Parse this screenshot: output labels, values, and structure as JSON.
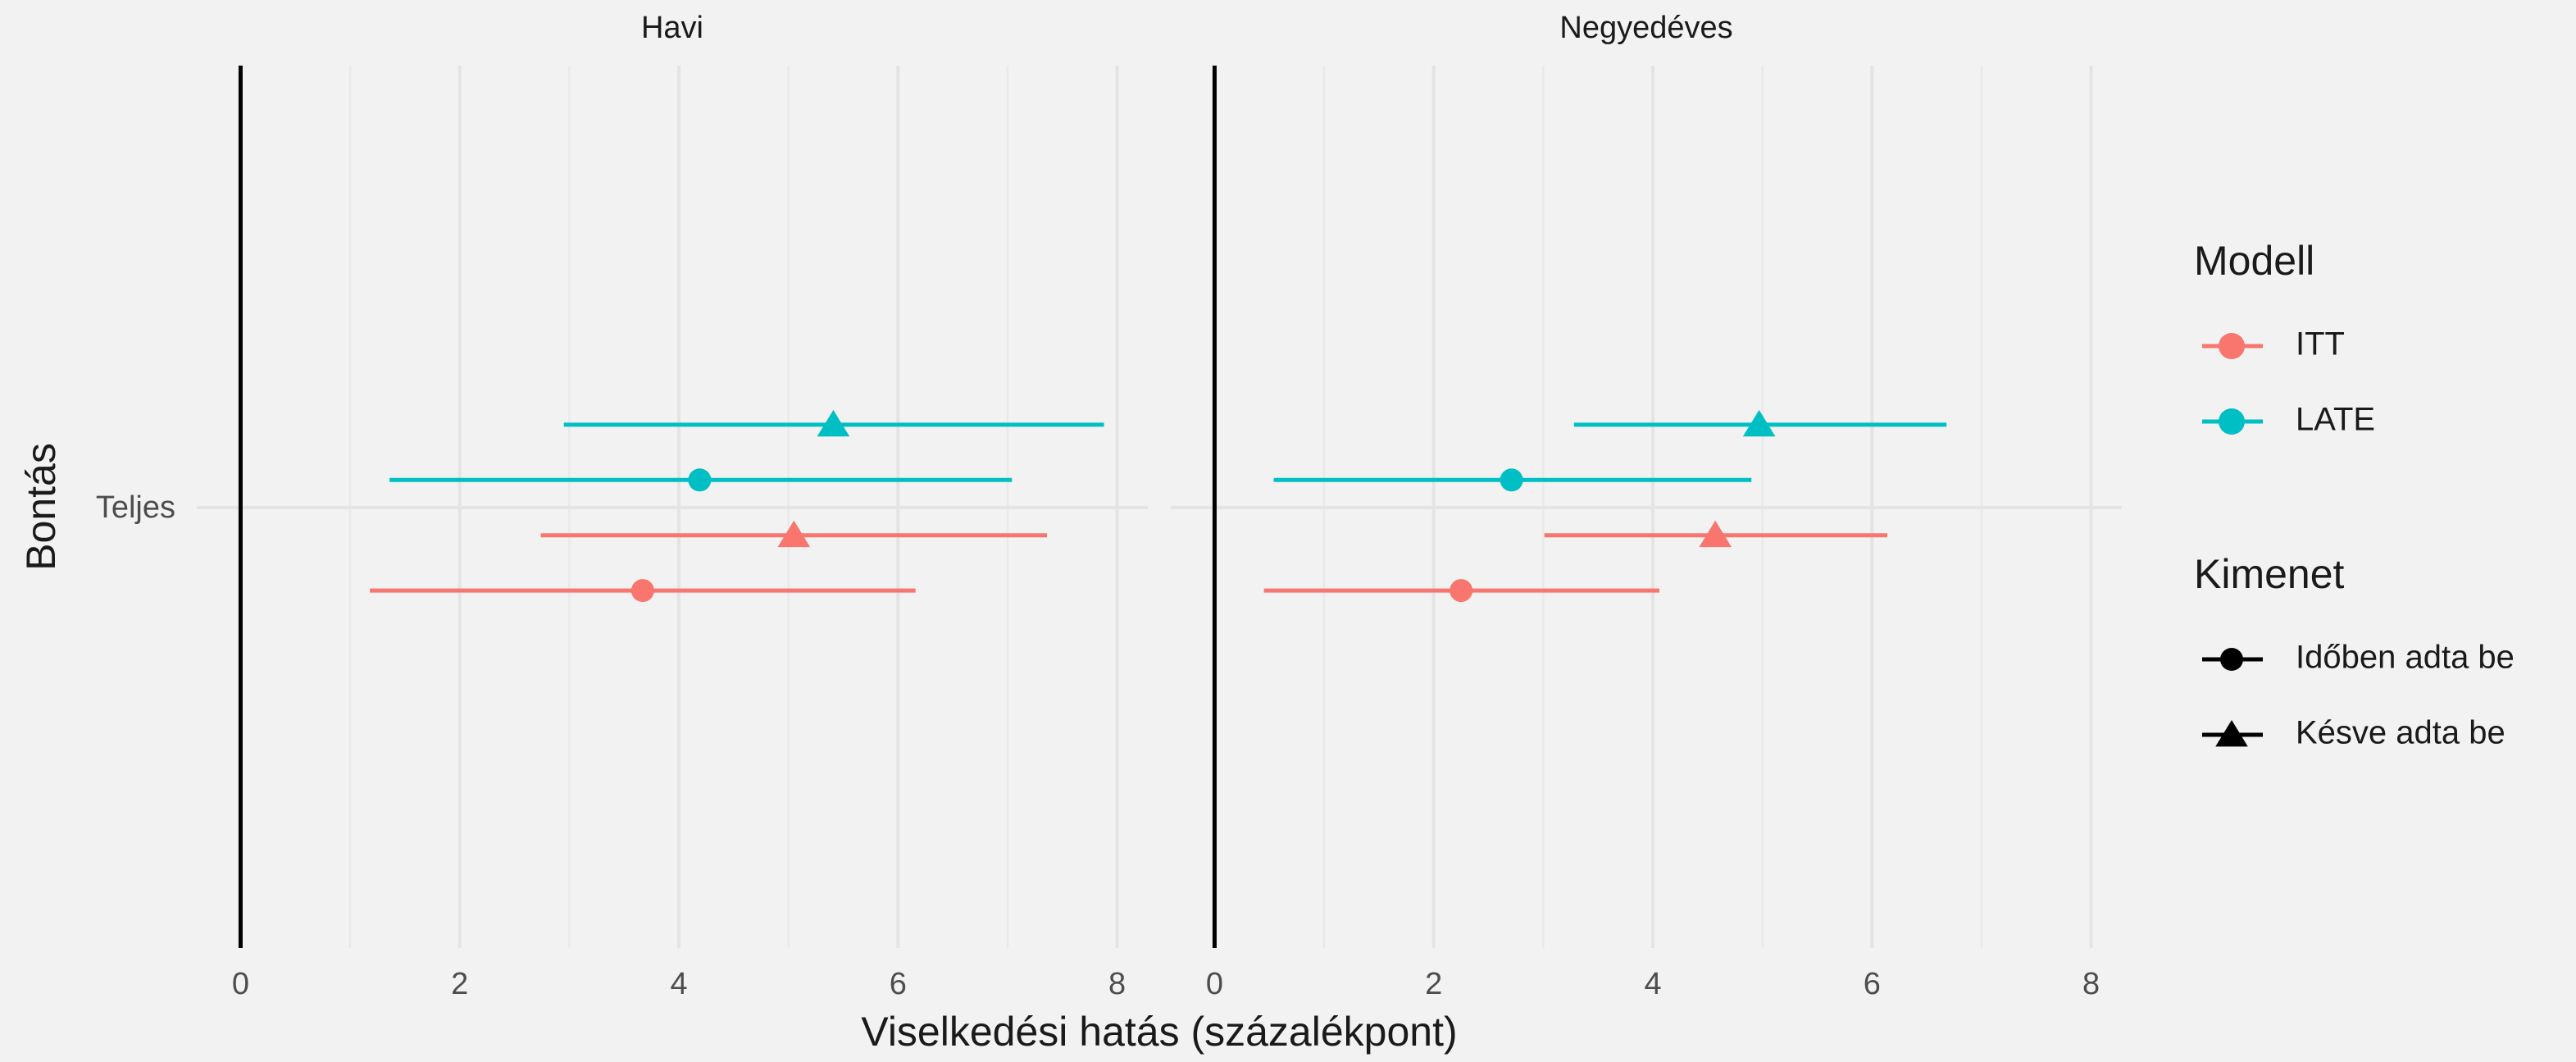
{
  "chart_data": {
    "type": "errorbar",
    "x_label": "Viselkedési hatás (százalékpont)",
    "y_label": "Bontás",
    "categories": [
      "Teljes"
    ],
    "xlim": [
      -0.4,
      8.28
    ],
    "xticks": [
      0,
      2,
      4,
      6,
      8
    ],
    "xticks_minor": [
      1,
      3,
      5,
      7
    ],
    "xintercept": 0,
    "grid": true,
    "legend_position": "right",
    "legend": {
      "color": {
        "title": "Modell",
        "entries": [
          {
            "name": "ITT",
            "color": "#f8766d"
          },
          {
            "name": "LATE",
            "color": "#00bfc4"
          }
        ]
      },
      "shape": {
        "title": "Kimenet",
        "entries": [
          {
            "name": "Időben adta be",
            "shape": "circle"
          },
          {
            "name": "Késve adta be",
            "shape": "triangle"
          }
        ]
      }
    },
    "facets": [
      {
        "title": "Havi",
        "series": [
          {
            "model": "ITT",
            "outcome": "Időben adta be",
            "color": "#f8766d",
            "shape": "circle",
            "values": [
              3.67
            ],
            "ci_low": [
              1.18
            ],
            "ci_high": [
              6.16
            ]
          },
          {
            "model": "ITT",
            "outcome": "Késve adta be",
            "color": "#f8766d",
            "shape": "triangle",
            "values": [
              5.05
            ],
            "ci_low": [
              2.74
            ],
            "ci_high": [
              7.36
            ]
          },
          {
            "model": "LATE",
            "outcome": "Időben adta be",
            "color": "#00bfc4",
            "shape": "circle",
            "values": [
              4.19
            ],
            "ci_low": [
              1.36
            ],
            "ci_high": [
              7.04
            ]
          },
          {
            "model": "LATE",
            "outcome": "Késve adta be",
            "color": "#00bfc4",
            "shape": "triangle",
            "values": [
              5.41
            ],
            "ci_low": [
              2.95
            ],
            "ci_high": [
              7.88
            ]
          }
        ]
      },
      {
        "title": "Negyedéves",
        "series": [
          {
            "model": "ITT",
            "outcome": "Időben adta be",
            "color": "#f8766d",
            "shape": "circle",
            "values": [
              2.25
            ],
            "ci_low": [
              0.45
            ],
            "ci_high": [
              4.06
            ]
          },
          {
            "model": "ITT",
            "outcome": "Késve adta be",
            "color": "#f8766d",
            "shape": "triangle",
            "values": [
              4.57
            ],
            "ci_low": [
              3.01
            ],
            "ci_high": [
              6.14
            ]
          },
          {
            "model": "LATE",
            "outcome": "Időben adta be",
            "color": "#00bfc4",
            "shape": "circle",
            "values": [
              2.71
            ],
            "ci_low": [
              0.54
            ],
            "ci_high": [
              4.9
            ]
          },
          {
            "model": "LATE",
            "outcome": "Késve adta be",
            "color": "#00bfc4",
            "shape": "triangle",
            "values": [
              4.97
            ],
            "ci_low": [
              3.28
            ],
            "ci_high": [
              6.68
            ]
          }
        ]
      }
    ]
  }
}
